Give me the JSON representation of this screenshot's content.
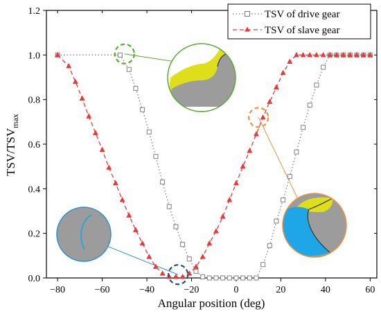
{
  "colors": {
    "drive": "#7f7f7f",
    "slave": "#e8393b",
    "callout_green": "#5aa832",
    "callout_orange": "#f0913a",
    "callout_blue": "#2f8fc9",
    "callout_navy": "#1f4e79",
    "gear_grey": "#9c9c9c",
    "yellow": "#dede1a",
    "cyan": "#1ea6e6"
  },
  "chart_data": {
    "type": "line",
    "title": "",
    "xlabel": "Angular position (deg)",
    "ylabel": "TSV/TSV",
    "ylabel_sub": "max",
    "xlim": [
      -85,
      63
    ],
    "ylim": [
      0,
      1.2
    ],
    "xticks": [
      "-80",
      "-60",
      "-40",
      "-20",
      "0",
      "20",
      "40",
      "60"
    ],
    "yticks": [
      "0.0",
      "0.2",
      "0.4",
      "0.6",
      "0.8",
      "1.0",
      "1.2"
    ],
    "legend_position": "top-right",
    "grid": false,
    "series": [
      {
        "name": "TSV of drive gear",
        "marker": "open-square",
        "line": "dotted",
        "x": [
          -80,
          -52,
          -48,
          -45,
          -42,
          -39,
          -36,
          -33,
          -30,
          -27,
          -24,
          -21,
          -18,
          -15,
          -12,
          -9,
          -6,
          -3,
          0,
          3,
          6,
          9,
          12,
          15,
          18,
          21,
          24,
          27,
          30,
          33,
          36,
          39,
          42,
          45,
          48,
          51,
          54,
          57,
          60
        ],
        "values": [
          1.0,
          1.0,
          0.935,
          0.85,
          0.755,
          0.655,
          0.545,
          0.43,
          0.32,
          0.23,
          0.15,
          0.085,
          0.03,
          0.005,
          0.0,
          0.0,
          0.0,
          0.0,
          0.0,
          0.0,
          0.0,
          0.0,
          0.06,
          0.145,
          0.255,
          0.35,
          0.455,
          0.565,
          0.675,
          0.775,
          0.865,
          0.945,
          1.0,
          1.0,
          1.0,
          1.0,
          1.0,
          1.0,
          1.0
        ]
      },
      {
        "name": "TSV of slave gear",
        "marker": "filled-triangle",
        "line": "dashed",
        "x": [
          -80,
          -75,
          -72,
          -69,
          -66,
          -63,
          -60,
          -57,
          -54,
          -51,
          -48,
          -45,
          -42,
          -39,
          -36,
          -33,
          -30,
          -27,
          -24,
          -21,
          -18,
          -15,
          -12,
          -9,
          -6,
          -3,
          0,
          3,
          6,
          9,
          12,
          15,
          18,
          21,
          24,
          27,
          30,
          33,
          36,
          39,
          42,
          45,
          48,
          51,
          54,
          57,
          60
        ],
        "values": [
          1.0,
          0.95,
          0.88,
          0.805,
          0.725,
          0.65,
          0.575,
          0.495,
          0.425,
          0.35,
          0.28,
          0.215,
          0.155,
          0.095,
          0.05,
          0.02,
          0.005,
          0.005,
          0.005,
          0.02,
          0.05,
          0.095,
          0.155,
          0.21,
          0.275,
          0.35,
          0.425,
          0.5,
          0.57,
          0.645,
          0.72,
          0.79,
          0.855,
          0.92,
          0.97,
          1.0,
          1.0,
          1.0,
          1.0,
          1.0,
          1.0,
          1.0,
          1.0,
          1.0,
          1.0,
          1.0,
          1.0
        ]
      }
    ],
    "callouts": [
      {
        "name": "green",
        "at": [
          -50,
          1.005
        ],
        "r_units": 0.035
      },
      {
        "name": "orange",
        "at": [
          10,
          0.72
        ],
        "r_units": 0.035
      },
      {
        "name": "navy",
        "at": [
          -26,
          0.015
        ],
        "r_units": 0.035
      }
    ]
  }
}
